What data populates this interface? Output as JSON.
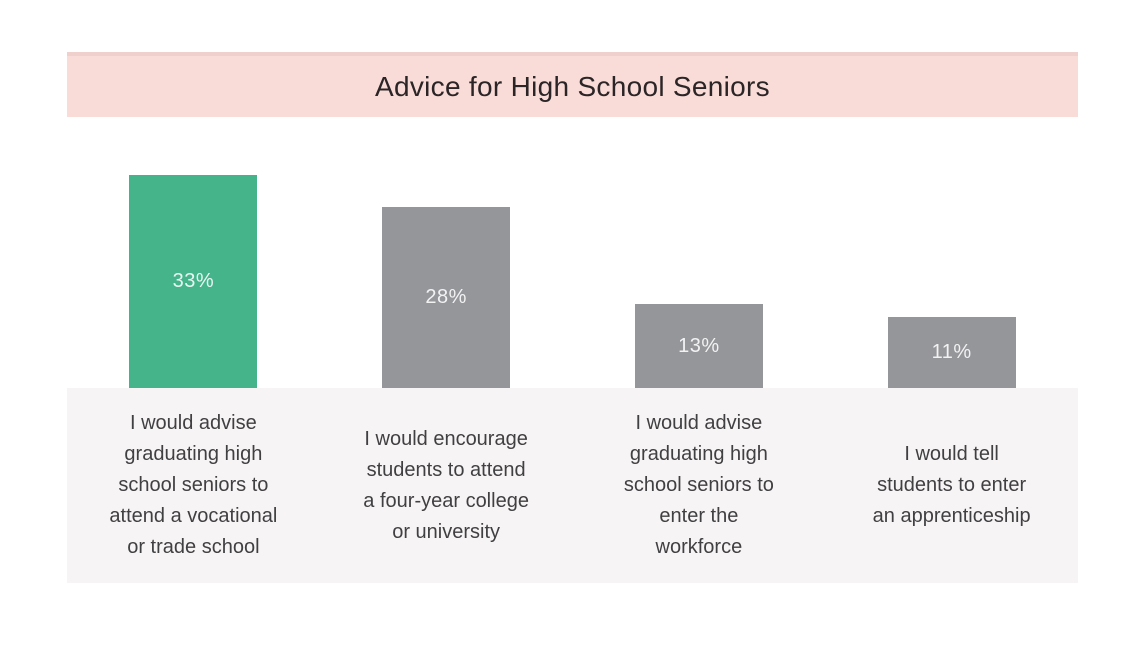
{
  "chart_data": {
    "type": "bar",
    "title": "Advice for High School Seniors",
    "categories": [
      "I would advise\ngraduating high\nschool seniors to\nattend a vocational\nor trade school",
      "I would encourage\nstudents to attend\na four-year college\nor university",
      "I would advise\ngraduating high\nschool seniors to\nenter the\nworkforce",
      "I would tell\nstudents to enter\nan apprenticeship"
    ],
    "values": [
      33,
      28,
      13,
      11
    ],
    "value_labels": [
      "33%",
      "28%",
      "13%",
      "11%"
    ],
    "bar_colors": [
      "#45b48b",
      "#95969a",
      "#95969a",
      "#95969a"
    ],
    "highlight_color": "#45b48b",
    "default_bar_color": "#95969a",
    "title_band_color": "#f9dcd7",
    "title_band_edge_color": "#f0d0cc",
    "label_area_color": "#f7f4f5",
    "xlabel": "",
    "ylabel": "",
    "ylim": [
      0,
      35
    ],
    "grid": false,
    "legend": false,
    "axes_hidden": true,
    "value_label_position": "center-of-bar"
  }
}
